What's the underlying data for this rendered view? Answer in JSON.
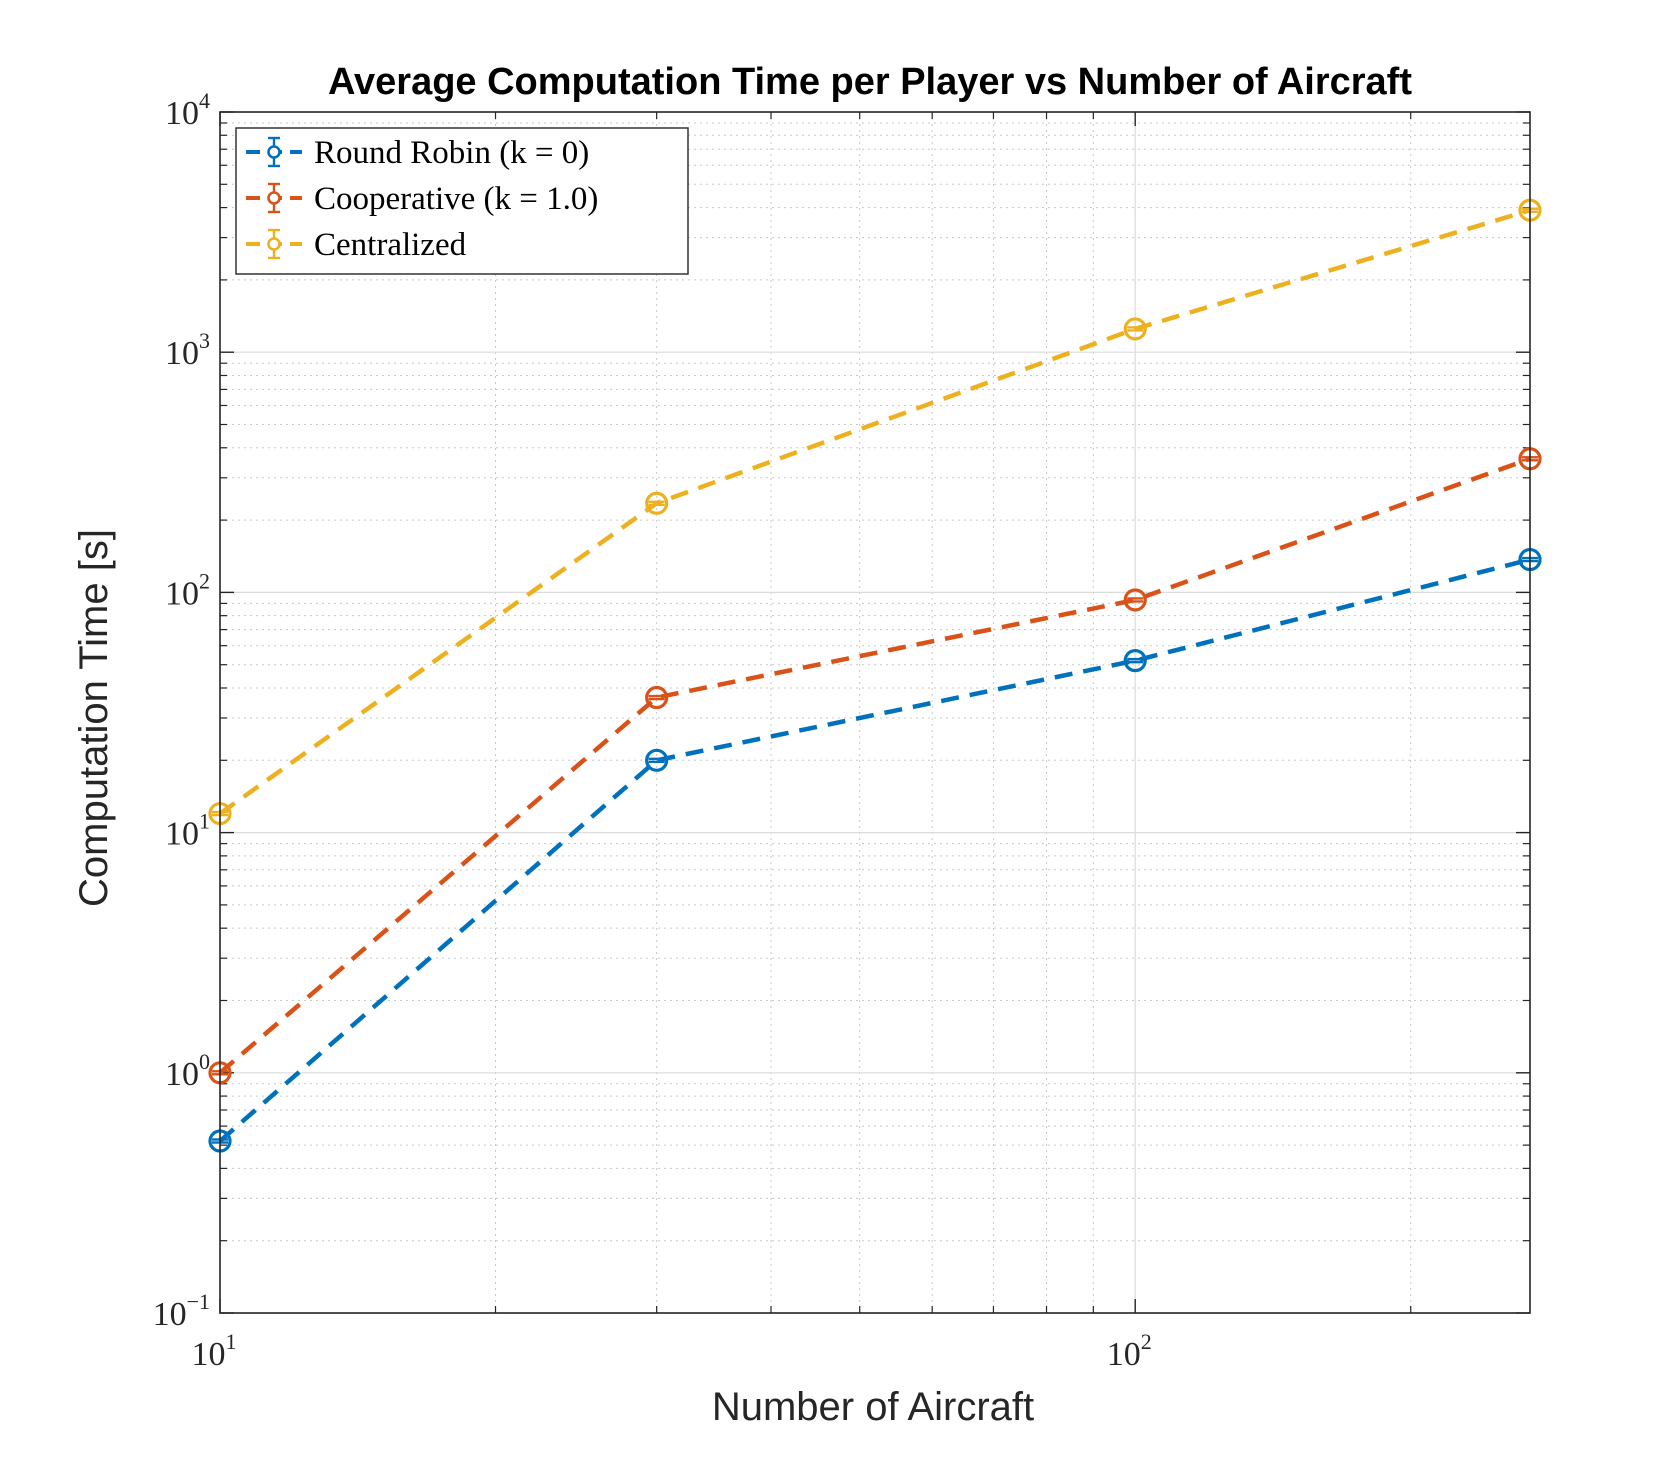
{
  "chart_data": {
    "type": "line",
    "title": "Average Computation Time per Player vs Number of Aircraft",
    "xlabel": "Number of Aircraft",
    "ylabel": "Computation Time [s]",
    "x_scale": "log",
    "y_scale": "log",
    "xlim": [
      10,
      270
    ],
    "ylim": [
      0.1,
      10000
    ],
    "x_ticks": [
      {
        "base": "10",
        "exp": "1",
        "value": 10
      },
      {
        "base": "10",
        "exp": "2",
        "value": 100
      }
    ],
    "y_ticks": [
      {
        "base": "10",
        "exp": "−1",
        "value": 0.1
      },
      {
        "base": "10",
        "exp": "0",
        "value": 1
      },
      {
        "base": "10",
        "exp": "1",
        "value": 10
      },
      {
        "base": "10",
        "exp": "2",
        "value": 100
      },
      {
        "base": "10",
        "exp": "3",
        "value": 1000
      },
      {
        "base": "10",
        "exp": "4",
        "value": 10000
      }
    ],
    "grid": true,
    "legend_position": "top-left",
    "x": [
      10,
      30,
      100,
      300
    ],
    "series": [
      {
        "name": "Round Robin (k = 0)",
        "color": "#0072BD",
        "values": [
          0.52,
          20.0,
          52.0,
          137.0
        ]
      },
      {
        "name": "Cooperative (k = 1.0)",
        "color": "#D95319",
        "values": [
          1.0,
          36.5,
          93.0,
          360.0
        ]
      },
      {
        "name": "Centralized",
        "color": "#EDB120",
        "values": [
          12.0,
          235.0,
          1250.0,
          3900.0
        ]
      }
    ]
  }
}
